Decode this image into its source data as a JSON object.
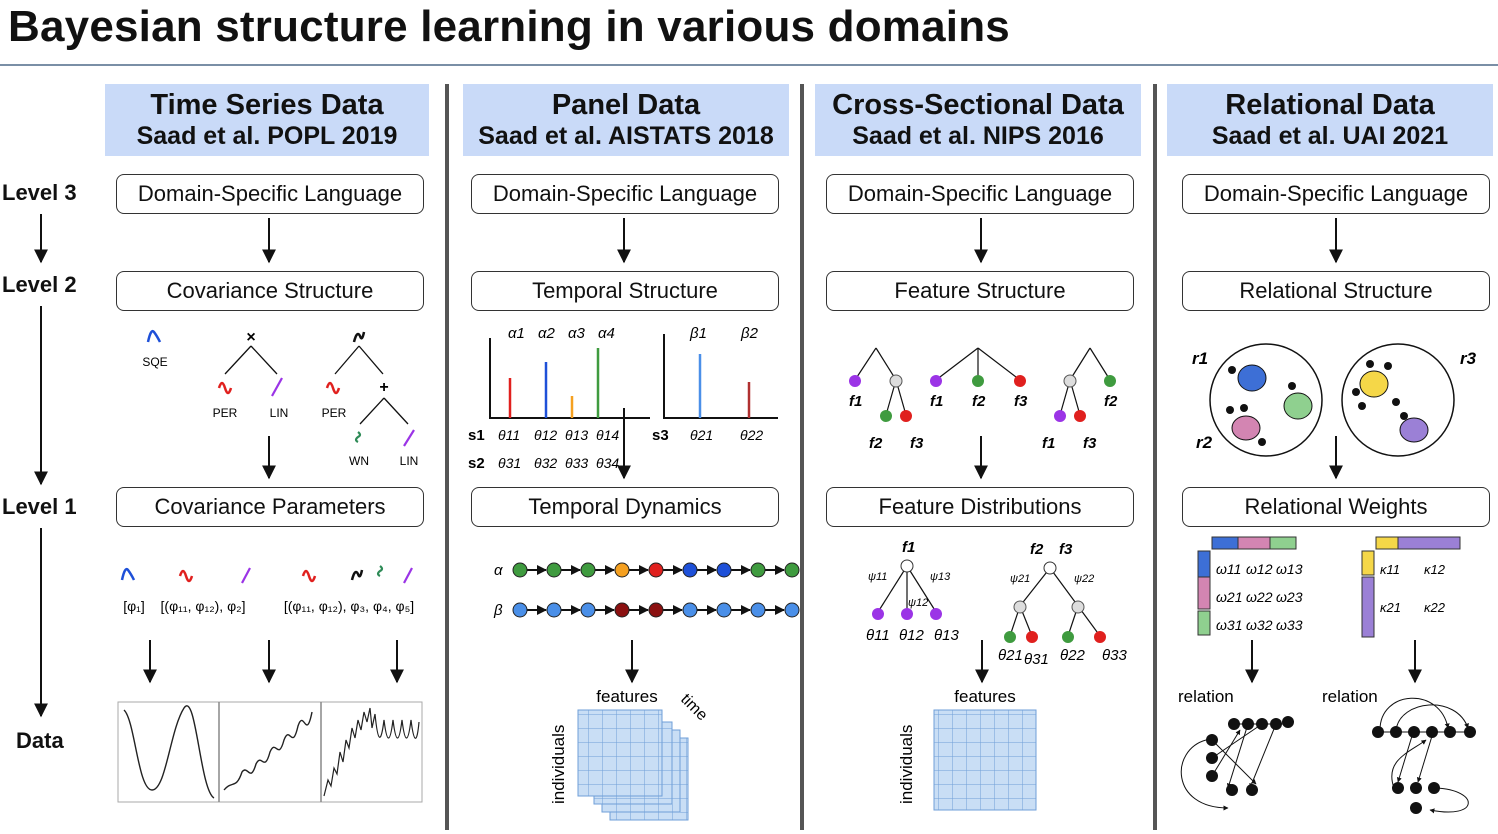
{
  "title": "Bayesian structure learning in various domains",
  "levels": [
    "Level 3",
    "Level 2",
    "Level 1",
    "Data"
  ],
  "panels": [
    {
      "title": "Time Series Data",
      "citation": "Saad et al. POPL 2019",
      "level3": "Domain-Specific Language",
      "level2": "Covariance Structure",
      "level1": "Covariance Parameters",
      "kernels": [
        "SQE",
        "PER",
        "LIN",
        "PER",
        "WN",
        "LIN"
      ],
      "ops": [
        "×",
        "+"
      ],
      "params": [
        "[φ₁]",
        "[(φ₁₁, φ₁₂), φ₂]",
        "[(φ₁₁, φ₁₂), φ₃, φ₄, φ₅]"
      ]
    },
    {
      "title": "Panel Data",
      "citation": "Saad et al. AISTATS 2018",
      "level3": "Domain-Specific Language",
      "level2": "Temporal Structure",
      "level1": "Temporal Dynamics",
      "alphas": [
        "α1",
        "α2",
        "α3",
        "α4"
      ],
      "betas": [
        "β1",
        "β2"
      ],
      "states": [
        "s1",
        "s2",
        "s3"
      ],
      "thetas_row1": [
        "θ11",
        "θ12",
        "θ13",
        "θ14"
      ],
      "thetas_row2": [
        "θ31",
        "θ32",
        "θ33",
        "θ34"
      ],
      "thetas_right": [
        "θ21",
        "θ22"
      ],
      "chain_labels": [
        "α",
        "β"
      ],
      "axes": {
        "features": "features",
        "time": "time",
        "individuals": "individuals"
      }
    },
    {
      "title": "Cross-Sectional Data",
      "citation": "Saad et al. NIPS 2016",
      "level3": "Domain-Specific Language",
      "level2": "Feature Structure",
      "level1": "Feature Distributions",
      "features": [
        "f1",
        "f2",
        "f3"
      ],
      "psis": [
        "ψ11",
        "ψ12",
        "ψ13",
        "ψ21",
        "ψ22"
      ],
      "thetas": [
        "θ11",
        "θ12",
        "θ13",
        "θ21",
        "θ31",
        "θ22",
        "θ33"
      ],
      "axes": {
        "features": "features",
        "individuals": "individuals"
      }
    },
    {
      "title": "Relational Data",
      "citation": "Saad et al. UAI 2021",
      "level3": "Domain-Specific Language",
      "level2": "Relational Structure",
      "level1": "Relational Weights",
      "relations": [
        "r1",
        "r2",
        "r3"
      ],
      "omegas": [
        "ω11",
        "ω12",
        "ω13",
        "ω21",
        "ω22",
        "ω23",
        "ω31",
        "ω32",
        "ω33"
      ],
      "kappas": [
        "κ11",
        "κ12",
        "κ21",
        "κ22"
      ],
      "relation_label": "relation"
    }
  ],
  "colors": {
    "header_bg": "#c9daf8",
    "blue": "#1e50d8",
    "red": "#e0201e",
    "purple": "#9b34e6",
    "green": "#2e8b57",
    "green_node": "#3f9b3f",
    "orange": "#f5a020",
    "darkred": "#8b1010",
    "lightblue": "#4a8fe8",
    "grid": "#c9def5"
  }
}
